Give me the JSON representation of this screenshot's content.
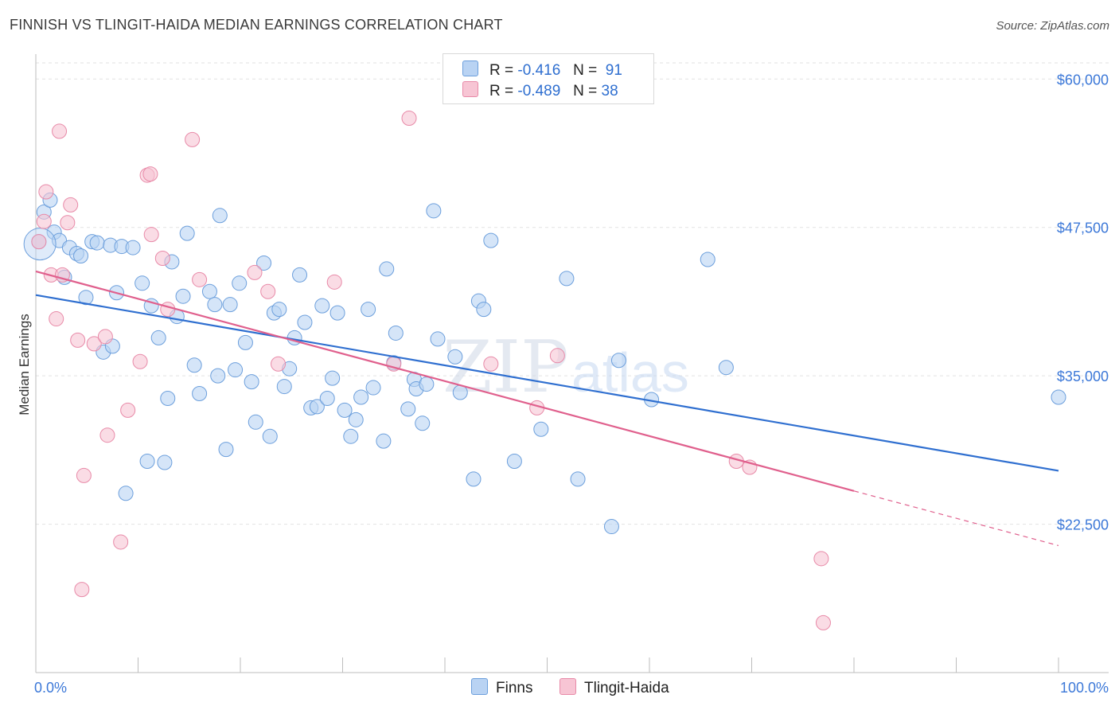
{
  "title": "FINNISH VS TLINGIT-HAIDA MEDIAN EARNINGS CORRELATION CHART",
  "source": "Source: ZipAtlas.com",
  "watermark": {
    "zip": "ZIP",
    "atlas": "atlas"
  },
  "legend_top": [
    {
      "r_label": "R =",
      "r_value": "-0.416",
      "n_label": "N =",
      "n_value": "91"
    },
    {
      "r_label": "R =",
      "r_value": "-0.489",
      "n_label": "N =",
      "n_value": "38"
    }
  ],
  "legend_bottom": [
    "Finns",
    "Tlingit-Haida"
  ],
  "colors": {
    "finns_fill": "#b9d3f3",
    "finns_stroke": "#6c9fdc",
    "finns_line": "#2f6fd0",
    "tlingit_fill": "#f7c5d4",
    "tlingit_stroke": "#e88aa8",
    "tlingit_line": "#e0608d",
    "axis_label": "#3c78d8",
    "grid": "#e2e2e2"
  },
  "chart_data": {
    "type": "scatter",
    "title": "FINNISH VS TLINGIT-HAIDA MEDIAN EARNINGS CORRELATION CHART",
    "xlabel": "",
    "ylabel": "Median Earnings",
    "xlim": [
      0,
      100
    ],
    "ylim": [
      10000,
      62500
    ],
    "x_tick_labels": [
      "0.0%",
      "100.0%"
    ],
    "y_ticks": [
      22500,
      35000,
      47500,
      60000
    ],
    "y_tick_labels": [
      "$22,500",
      "$35,000",
      "$47,500",
      "$60,000"
    ],
    "series": [
      {
        "name": "Finns",
        "r": -0.416,
        "n": 91,
        "trend": {
          "x": [
            0,
            100
          ],
          "y": [
            41800,
            27000
          ]
        },
        "points": [
          [
            0.3,
            46300
          ],
          [
            0.8,
            48800
          ],
          [
            1.4,
            49800
          ],
          [
            1.8,
            47100
          ],
          [
            2.3,
            46400
          ],
          [
            2.8,
            43300
          ],
          [
            3.3,
            45800
          ],
          [
            4.0,
            45300
          ],
          [
            4.4,
            45100
          ],
          [
            4.9,
            41600
          ],
          [
            5.5,
            46300
          ],
          [
            6.0,
            46200
          ],
          [
            6.6,
            37000
          ],
          [
            7.3,
            46000
          ],
          [
            7.5,
            37500
          ],
          [
            7.9,
            42000
          ],
          [
            8.4,
            45900
          ],
          [
            8.8,
            25100
          ],
          [
            9.5,
            45800
          ],
          [
            10.4,
            42800
          ],
          [
            10.9,
            27800
          ],
          [
            11.3,
            40900
          ],
          [
            12.0,
            38200
          ],
          [
            12.6,
            27700
          ],
          [
            12.9,
            33100
          ],
          [
            13.3,
            44600
          ],
          [
            13.8,
            40000
          ],
          [
            14.4,
            41700
          ],
          [
            14.8,
            47000
          ],
          [
            15.5,
            35900
          ],
          [
            16.0,
            33500
          ],
          [
            17.0,
            42100
          ],
          [
            17.5,
            41000
          ],
          [
            17.8,
            35000
          ],
          [
            18.0,
            48500
          ],
          [
            18.6,
            28800
          ],
          [
            19.0,
            41000
          ],
          [
            19.5,
            35500
          ],
          [
            19.9,
            42800
          ],
          [
            20.5,
            37800
          ],
          [
            21.1,
            34500
          ],
          [
            21.5,
            31100
          ],
          [
            22.3,
            44500
          ],
          [
            22.9,
            29900
          ],
          [
            23.3,
            40300
          ],
          [
            23.8,
            40600
          ],
          [
            24.3,
            34100
          ],
          [
            24.8,
            35600
          ],
          [
            25.3,
            38200
          ],
          [
            25.8,
            43500
          ],
          [
            26.3,
            39500
          ],
          [
            26.9,
            32300
          ],
          [
            27.5,
            32400
          ],
          [
            28.0,
            40900
          ],
          [
            28.5,
            33100
          ],
          [
            29.0,
            34800
          ],
          [
            29.5,
            40300
          ],
          [
            30.2,
            32100
          ],
          [
            30.8,
            29900
          ],
          [
            31.3,
            31300
          ],
          [
            31.8,
            33200
          ],
          [
            32.5,
            40600
          ],
          [
            33.0,
            34000
          ],
          [
            34.0,
            29500
          ],
          [
            34.3,
            44000
          ],
          [
            35.0,
            36100
          ],
          [
            35.2,
            38600
          ],
          [
            36.4,
            32200
          ],
          [
            37.0,
            34700
          ],
          [
            37.2,
            33900
          ],
          [
            37.8,
            31000
          ],
          [
            38.2,
            34300
          ],
          [
            38.9,
            48900
          ],
          [
            39.3,
            38100
          ],
          [
            41.0,
            36600
          ],
          [
            41.5,
            33600
          ],
          [
            42.8,
            26300
          ],
          [
            43.3,
            41300
          ],
          [
            43.8,
            40600
          ],
          [
            44.5,
            46400
          ],
          [
            46.8,
            27800
          ],
          [
            49.4,
            30500
          ],
          [
            51.9,
            43200
          ],
          [
            53.0,
            26300
          ],
          [
            56.3,
            22300
          ],
          [
            57.0,
            36300
          ],
          [
            60.2,
            33000
          ],
          [
            65.7,
            44800
          ],
          [
            67.5,
            35700
          ],
          [
            100.0,
            33200
          ],
          [
            0.4,
            46100
          ]
        ]
      },
      {
        "name": "Tlingit-Haida",
        "r": -0.489,
        "n": 38,
        "trend": {
          "x": [
            0,
            80,
            100
          ],
          "y": [
            43800,
            25300,
            20700
          ]
        },
        "points": [
          [
            0.3,
            46300
          ],
          [
            0.8,
            48000
          ],
          [
            1.0,
            50500
          ],
          [
            1.5,
            43500
          ],
          [
            2.0,
            39800
          ],
          [
            2.3,
            55600
          ],
          [
            2.6,
            43500
          ],
          [
            3.1,
            47900
          ],
          [
            3.4,
            49400
          ],
          [
            4.1,
            38000
          ],
          [
            4.5,
            17000
          ],
          [
            4.7,
            26600
          ],
          [
            5.7,
            37700
          ],
          [
            6.8,
            38300
          ],
          [
            7.0,
            30000
          ],
          [
            8.3,
            21000
          ],
          [
            9.0,
            32100
          ],
          [
            10.2,
            36200
          ],
          [
            10.9,
            51900
          ],
          [
            11.2,
            52000
          ],
          [
            11.3,
            46900
          ],
          [
            12.4,
            44900
          ],
          [
            12.9,
            40600
          ],
          [
            15.3,
            54900
          ],
          [
            16.0,
            43100
          ],
          [
            21.4,
            43700
          ],
          [
            22.7,
            42100
          ],
          [
            23.7,
            36000
          ],
          [
            29.2,
            42900
          ],
          [
            35.0,
            36000
          ],
          [
            36.5,
            56700
          ],
          [
            44.5,
            36000
          ],
          [
            49.0,
            32300
          ],
          [
            51.0,
            36700
          ],
          [
            68.5,
            27800
          ],
          [
            69.8,
            27300
          ],
          [
            76.8,
            19600
          ],
          [
            77.0,
            14200
          ]
        ]
      }
    ]
  }
}
